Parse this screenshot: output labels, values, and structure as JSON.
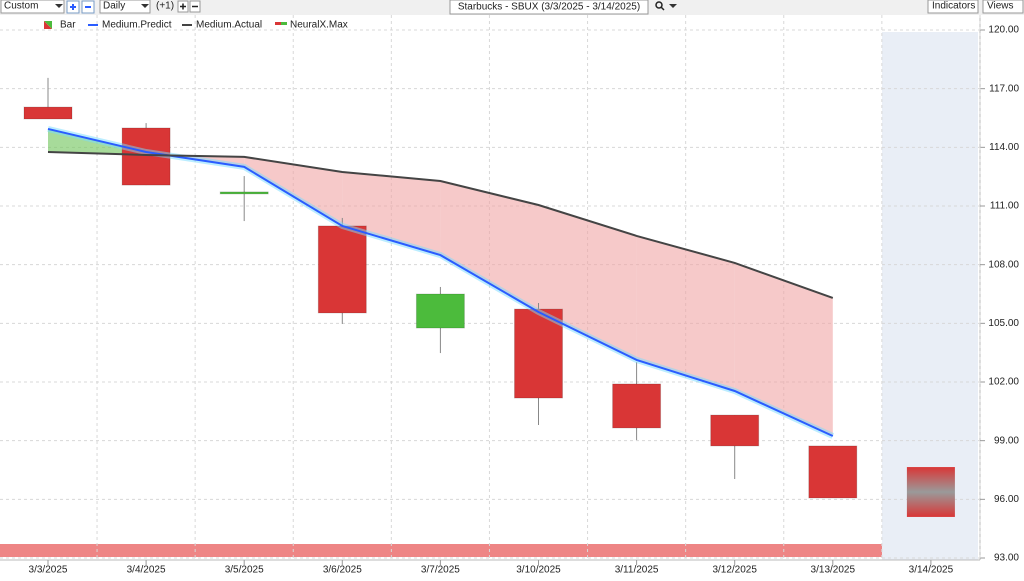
{
  "toolbar": {
    "preset": "Custom",
    "period": "Daily",
    "offset": "(+1)",
    "indicators": "Indicators",
    "views": "Views"
  },
  "chart_data": {
    "type": "candlestick",
    "title": "Starbucks - SBUX (3/3/2025 - 3/14/2025)",
    "categories": [
      "3/3/2025",
      "3/4/2025",
      "3/5/2025",
      "3/6/2025",
      "3/7/2025",
      "3/10/2025",
      "3/11/2025",
      "3/12/2025",
      "3/13/2025",
      "3/14/2025"
    ],
    "bars": {
      "name": "Bar",
      "up_color": "#4cbb3c",
      "down_color": "#d93636",
      "open": [
        116.06,
        114.99,
        111.62,
        109.98,
        104.76,
        105.73,
        101.9,
        100.31,
        98.73,
        null
      ],
      "high": [
        117.55,
        115.24,
        112.53,
        110.39,
        106.86,
        106.04,
        103.02,
        100.31,
        98.73,
        null
      ],
      "low": [
        115.45,
        112.07,
        110.23,
        104.97,
        103.48,
        99.8,
        99.03,
        97.04,
        96.07,
        null
      ],
      "close": [
        115.45,
        112.07,
        111.72,
        105.53,
        106.5,
        101.18,
        99.65,
        98.73,
        96.07,
        null
      ]
    },
    "series": [
      {
        "name": "Medium.Predict",
        "color": "#2a5cff",
        "values": [
          114.94,
          113.76,
          113.0,
          109.98,
          108.49,
          105.58,
          103.13,
          101.54,
          99.24,
          null
        ]
      },
      {
        "name": "Medium.Actual",
        "color": "#444444",
        "values": [
          113.76,
          113.61,
          113.51,
          112.74,
          112.28,
          111.05,
          109.47,
          108.09,
          106.3,
          null
        ]
      }
    ],
    "neuralx": {
      "name": "NeuralX.Max",
      "top": [
        null,
        null,
        null,
        null,
        null,
        null,
        null,
        null,
        null,
        97.65
      ],
      "bottom": [
        null,
        null,
        null,
        null,
        null,
        null,
        null,
        null,
        null,
        95.1
      ]
    },
    "ylim": [
      93,
      120
    ],
    "yticks": [
      {
        "value": 93,
        "label": "93.00"
      },
      {
        "value": 96,
        "label": "96.00"
      },
      {
        "value": 99,
        "label": "99.00"
      },
      {
        "value": 102,
        "label": "102.00"
      },
      {
        "value": 105,
        "label": "105.00"
      },
      {
        "value": 108,
        "label": "108.00"
      },
      {
        "value": 111,
        "label": "111.00"
      },
      {
        "value": 114,
        "label": "114.00"
      },
      {
        "value": 117,
        "label": "117.00"
      },
      {
        "value": 120,
        "label": "120.00"
      }
    ],
    "grid": true
  }
}
